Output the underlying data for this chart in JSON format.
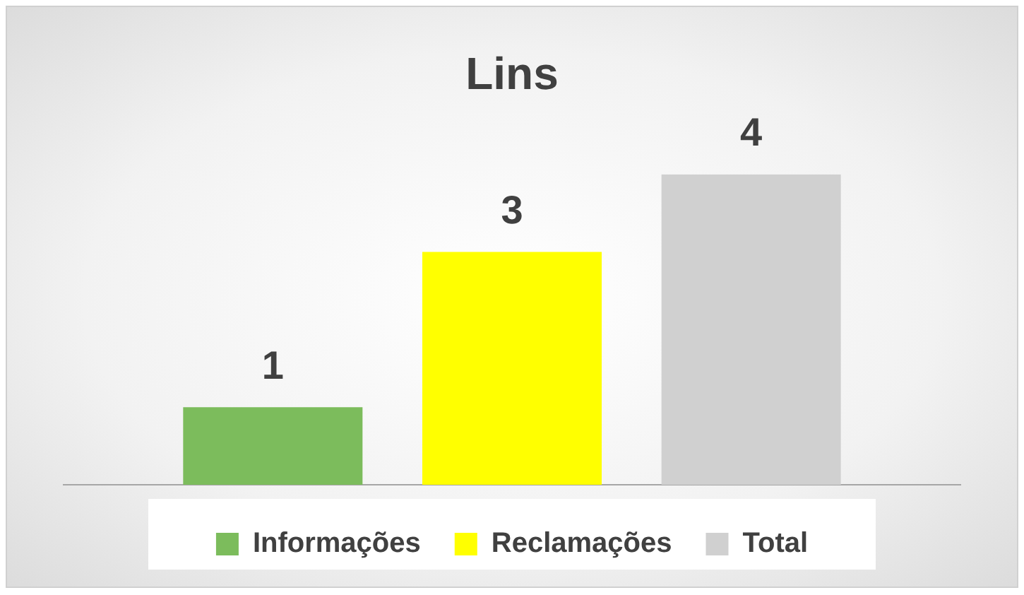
{
  "chart_data": {
    "type": "bar",
    "title": "Lins",
    "categories": [
      null
    ],
    "series": [
      {
        "name": "Informações",
        "color": "#7cbc5c",
        "values": [
          1
        ]
      },
      {
        "name": "Reclamações",
        "color": "#ffff00",
        "values": [
          3
        ]
      },
      {
        "name": "Total",
        "color": "#d0d0d0",
        "values": [
          4
        ]
      }
    ],
    "data_labels": true,
    "legend": "bottom",
    "grid": false,
    "tick_labels": false
  }
}
